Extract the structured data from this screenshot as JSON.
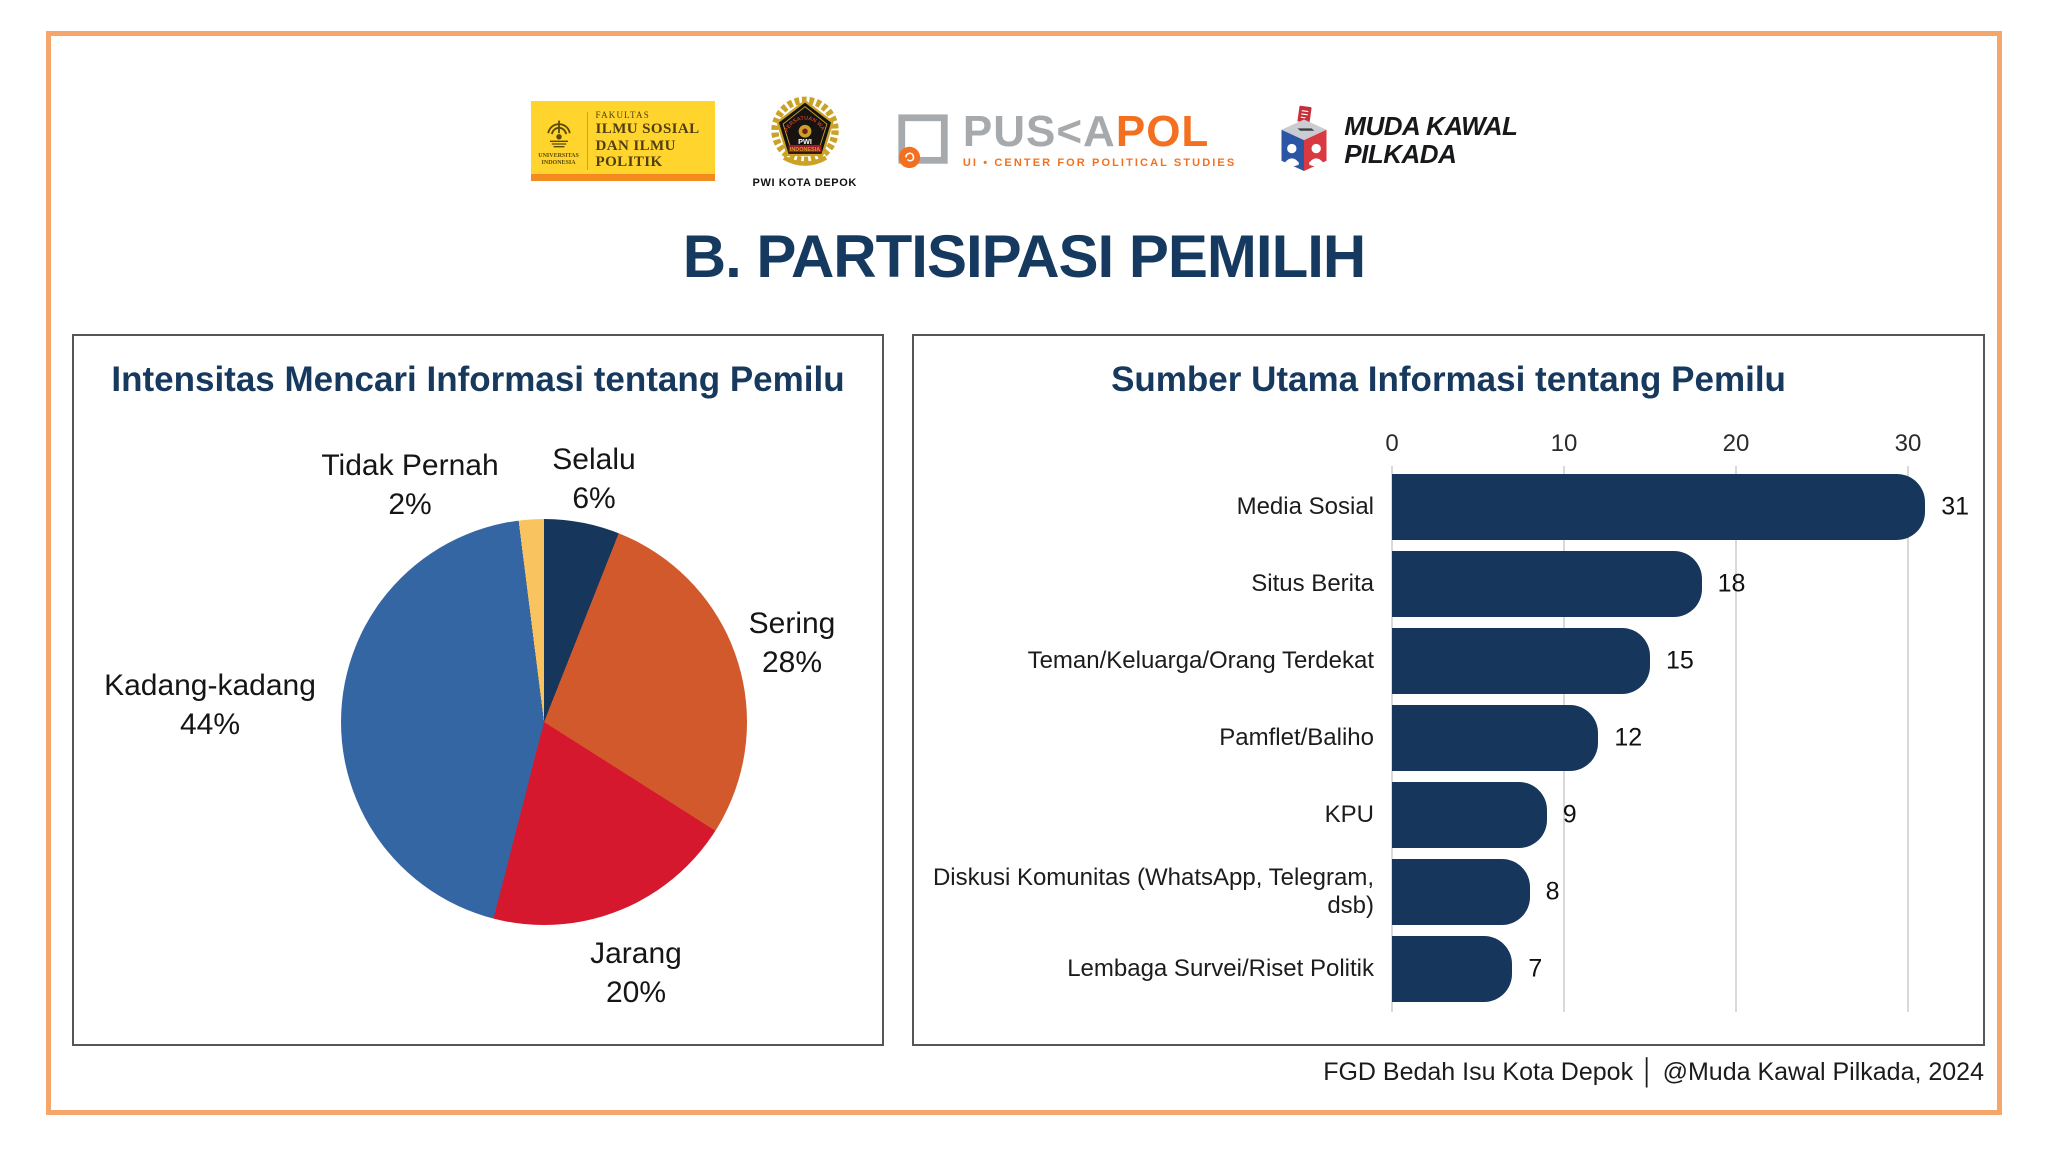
{
  "title": "B. PARTISIPASI PEMILIH",
  "footer": "FGD Bedah Isu Kota Depok │ @Muda Kawal Pilkada, 2024",
  "colors": {
    "frame_orange": "#f4a66b",
    "title_navy": "#163a5f",
    "panel_title_navy": "#17395e",
    "bar_navy": "#16375b",
    "gridline_gray": "#d9d9d9"
  },
  "logos": {
    "fisip": {
      "faculty_label": "FAKULTAS",
      "line1": "ILMU SOSIAL",
      "line2": "DAN ILMU",
      "line3": "POLITIK",
      "univ_line1": "UNIVERSITAS",
      "univ_line2": "INDONESIA"
    },
    "pwi": {
      "arc_text": "PERSATUAN WARTAWAN",
      "abbr": "PWI",
      "band": "INDONESIA",
      "caption": "PWI KOTA DEPOK"
    },
    "puskapol": {
      "name_gray": "PUS<A",
      "name_orange": "POL",
      "subtitle": "UI • CENTER FOR POLITICAL STUDIES"
    },
    "mkp": {
      "line1": "MUDA KAWAL",
      "line2": "PILKADA"
    }
  },
  "panels": {
    "pie": {
      "title": "Intensitas Mencari Informasi tentang Pemilu"
    },
    "bar": {
      "title": "Sumber Utama Informasi tentang Pemilu"
    }
  },
  "chart_data": [
    {
      "type": "pie",
      "title": "Intensitas Mencari Informasi tentang Pemilu",
      "labels": [
        "Selalu",
        "Sering",
        "Jarang",
        "Kadang-kadang",
        "Tidak Pernah"
      ],
      "values": [
        6,
        28,
        20,
        44,
        2
      ],
      "unit": "%",
      "colors": [
        "#16375b",
        "#d2592c",
        "#d6182f",
        "#3566a4",
        "#f9c360"
      ],
      "start_angle_deg": 0,
      "direction": "clockwise",
      "legend_position": "outside-labels"
    },
    {
      "type": "bar",
      "orientation": "horizontal",
      "title": "Sumber Utama Informasi tentang Pemilu",
      "categories": [
        "Media Sosial",
        "Situs Berita",
        "Teman/Keluarga/Orang Terdekat",
        "Pamflet/Baliho",
        "KPU",
        "Diskusi Komunitas (WhatsApp, Telegram, dsb)",
        "Lembaga Survei/Riset Politik"
      ],
      "values": [
        31,
        18,
        15,
        12,
        9,
        8,
        7
      ],
      "axis_ticks": [
        0,
        10,
        20,
        30
      ],
      "xlim": [
        0,
        33
      ],
      "bar_color": "#16375b",
      "grid": true,
      "value_labels": true
    }
  ]
}
